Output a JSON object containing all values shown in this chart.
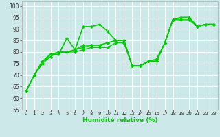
{
  "xlabel": "Humidité relative (%)",
  "background_color": "#cce8e8",
  "grid_color": "#ffffff",
  "line_color": "#00cc00",
  "ylim": [
    55,
    102
  ],
  "yticks": [
    55,
    60,
    65,
    70,
    75,
    80,
    85,
    90,
    95,
    100
  ],
  "xlim": [
    -0.5,
    23.5
  ],
  "series": [
    [
      63,
      70,
      76,
      79,
      79,
      86,
      81,
      91,
      91,
      92,
      89,
      85,
      85,
      74,
      74,
      76,
      76,
      84,
      94,
      95,
      95,
      91,
      92,
      92
    ],
    [
      63,
      70,
      75,
      78,
      80,
      80,
      80,
      81,
      82,
      82,
      82,
      84,
      84,
      74,
      74,
      76,
      77,
      84,
      94,
      94,
      94,
      91,
      92,
      92
    ],
    [
      63,
      70,
      75,
      79,
      80,
      80,
      81,
      82,
      83,
      83,
      84,
      85,
      85,
      74,
      74,
      76,
      76,
      84,
      94,
      95,
      95,
      91,
      92,
      92
    ],
    [
      63,
      70,
      76,
      79,
      80,
      80,
      81,
      83,
      83,
      83,
      84,
      85,
      85,
      74,
      74,
      76,
      76,
      84,
      94,
      95,
      95,
      91,
      92,
      92
    ]
  ]
}
